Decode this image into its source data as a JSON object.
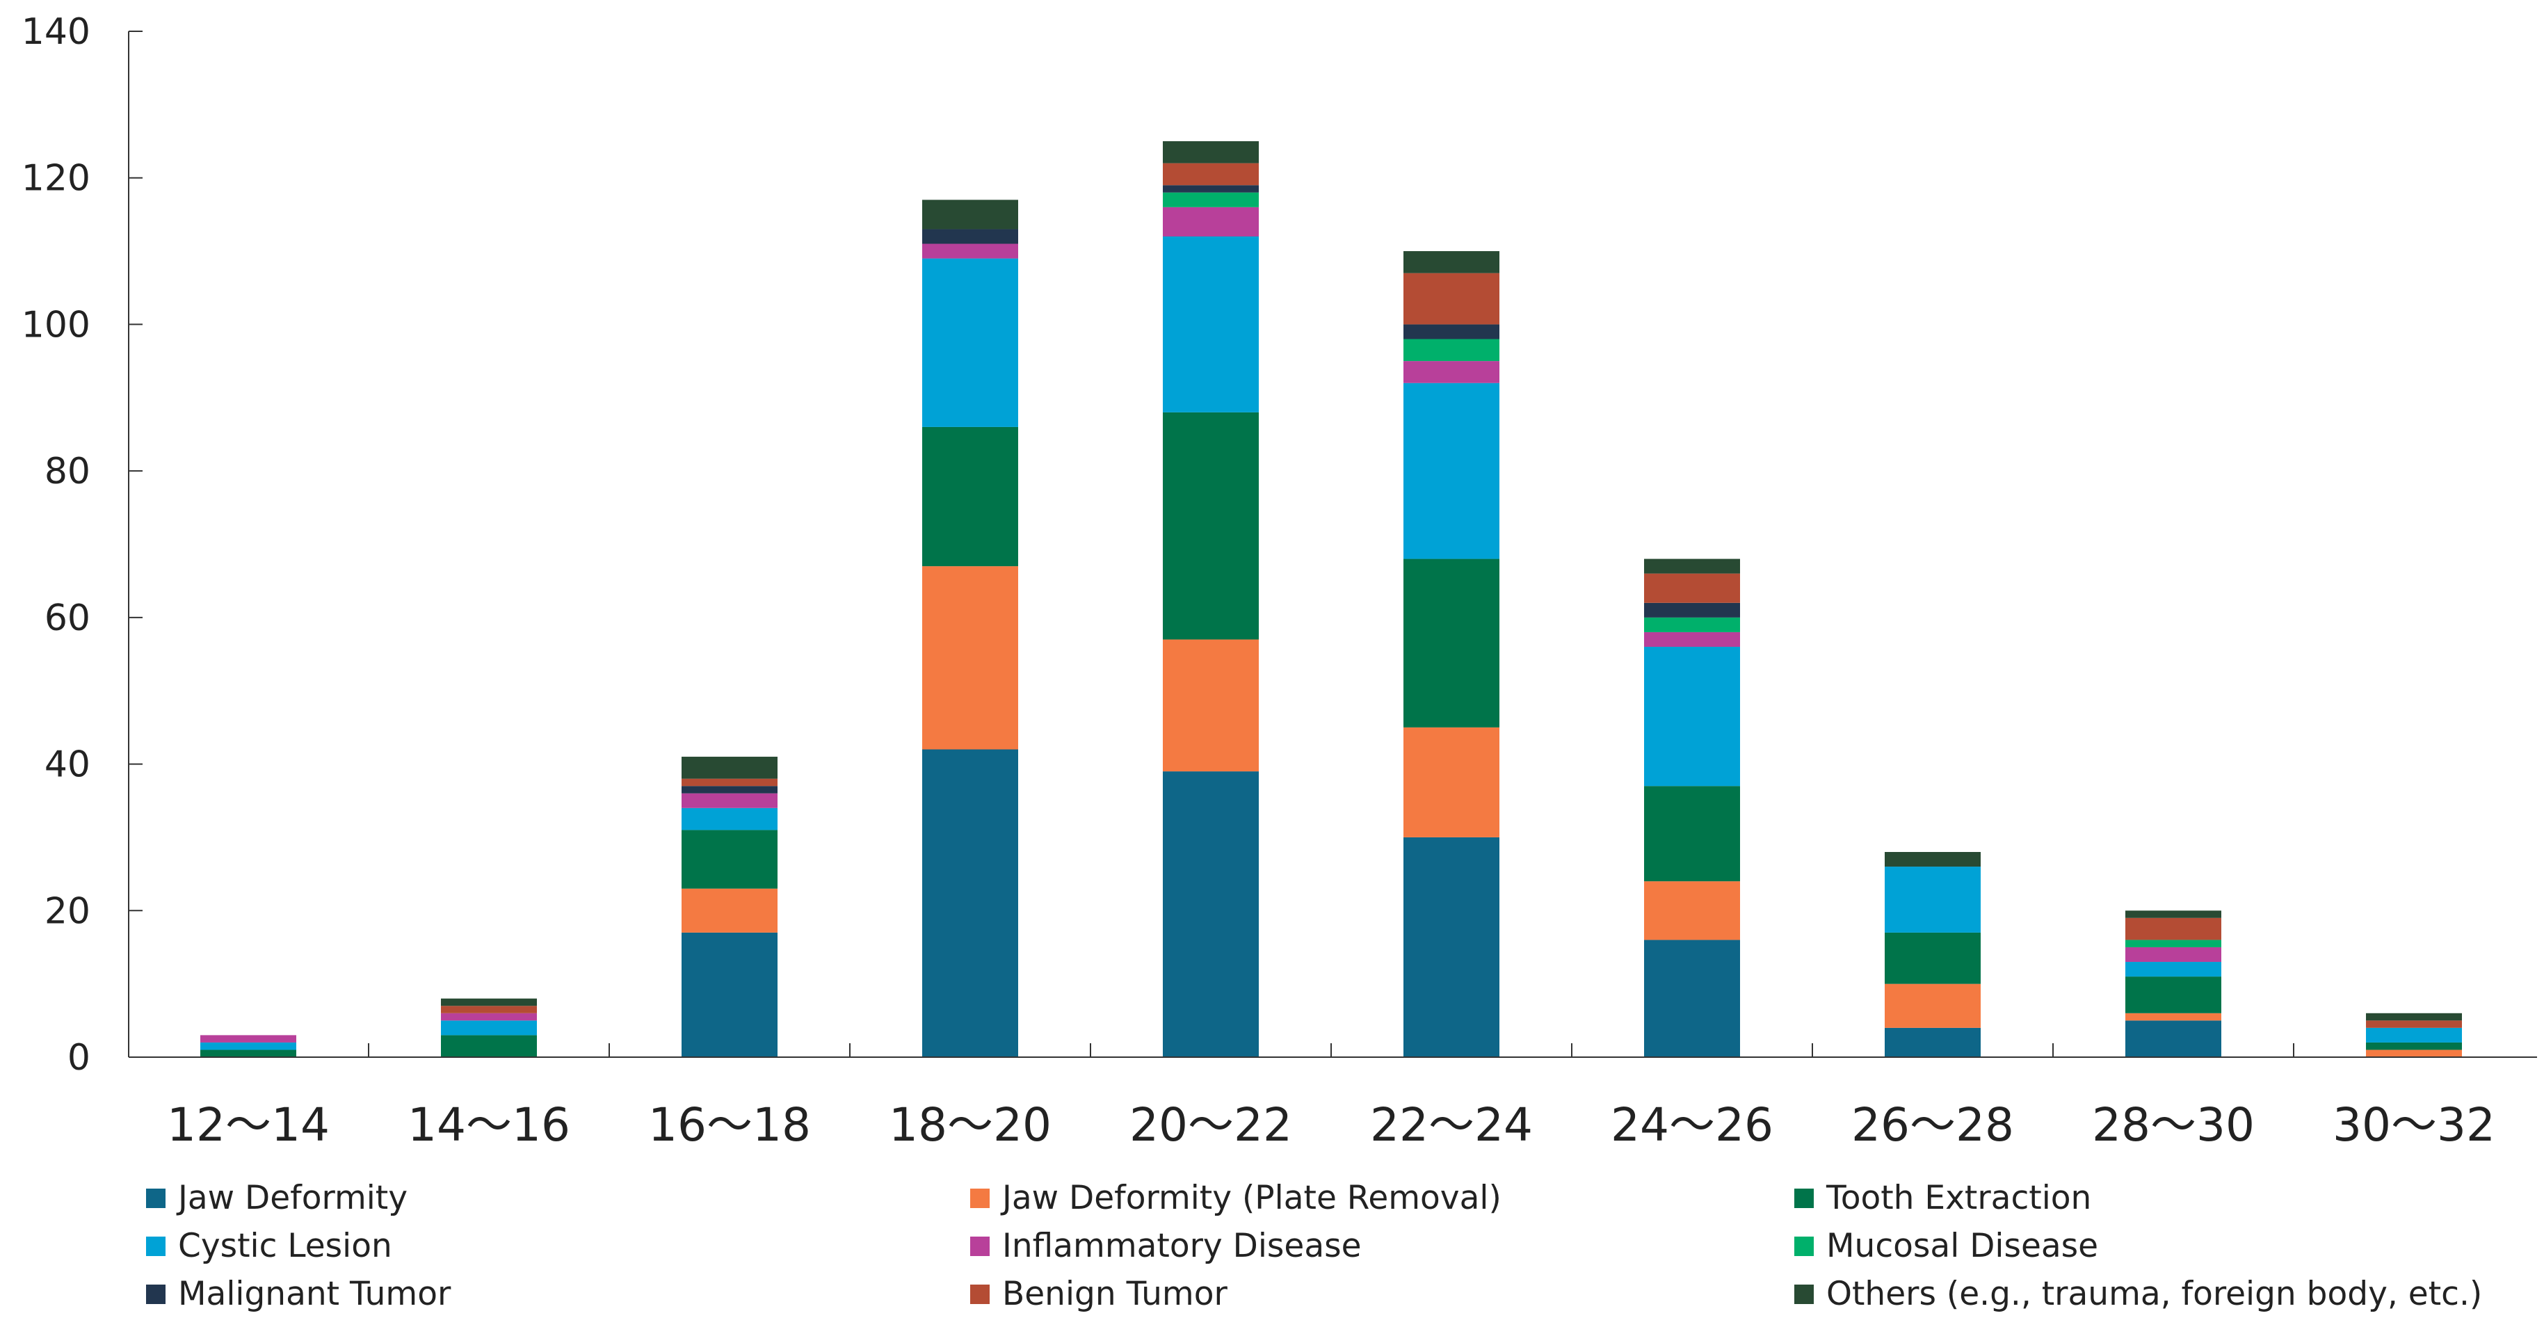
{
  "chart_data": {
    "type": "bar",
    "stacked": true,
    "title": "",
    "xlabel": "",
    "ylabel": "",
    "ylim": [
      0,
      140
    ],
    "yticks": [
      0,
      20,
      40,
      60,
      80,
      100,
      120,
      140
    ],
    "grid": false,
    "legend_position": "bottom",
    "categories": [
      "12～14",
      "14～16",
      "16～18",
      "18～20",
      "20～22",
      "22～24",
      "24～26",
      "26～28",
      "28～30",
      "30～32"
    ],
    "series": [
      {
        "name": "Jaw Deformity",
        "color": "#0e6688",
        "values": [
          0,
          0,
          17,
          42,
          39,
          30,
          16,
          4,
          5,
          0
        ]
      },
      {
        "name": "Jaw Deformity (Plate Removal)",
        "color": "#f47a42",
        "values": [
          0,
          0,
          6,
          25,
          18,
          15,
          8,
          6,
          1,
          1
        ]
      },
      {
        "name": "Tooth Extraction",
        "color": "#00744a",
        "values": [
          1,
          3,
          8,
          19,
          31,
          23,
          13,
          7,
          5,
          1
        ]
      },
      {
        "name": "Cystic Lesion",
        "color": "#00a2d6",
        "values": [
          1,
          2,
          3,
          23,
          24,
          24,
          19,
          9,
          2,
          2
        ]
      },
      {
        "name": "Inflammatory Disease",
        "color": "#b8409a",
        "values": [
          1,
          1,
          2,
          2,
          4,
          3,
          2,
          0,
          2,
          0
        ]
      },
      {
        "name": "Mucosal Disease",
        "color": "#00b06b",
        "values": [
          0,
          0,
          0,
          0,
          2,
          3,
          2,
          0,
          1,
          0
        ]
      },
      {
        "name": "Malignant Tumor",
        "color": "#22364f",
        "values": [
          0,
          0,
          1,
          2,
          1,
          2,
          2,
          0,
          0,
          0
        ]
      },
      {
        "name": "Benign Tumor",
        "color": "#b44c34",
        "values": [
          0,
          1,
          1,
          0,
          3,
          7,
          4,
          0,
          3,
          1
        ]
      },
      {
        "name": "Others (e.g., trauma, foreign body, etc.)",
        "color": "#284a33",
        "values": [
          0,
          1,
          3,
          4,
          3,
          3,
          2,
          2,
          1,
          1
        ]
      }
    ]
  }
}
